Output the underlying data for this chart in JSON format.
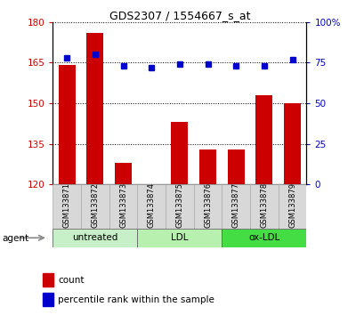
{
  "title": "GDS2307 / 1554667_s_at",
  "samples": [
    "GSM133871",
    "GSM133872",
    "GSM133873",
    "GSM133874",
    "GSM133875",
    "GSM133876",
    "GSM133877",
    "GSM133878",
    "GSM133879"
  ],
  "counts": [
    164,
    176,
    128,
    120,
    143,
    133,
    133,
    153,
    150
  ],
  "percentiles": [
    78,
    80,
    73,
    72,
    74,
    74,
    73,
    73,
    77
  ],
  "ylim_left": [
    120,
    180
  ],
  "ylim_right": [
    0,
    100
  ],
  "yticks_left": [
    120,
    135,
    150,
    165,
    180
  ],
  "yticks_right": [
    0,
    25,
    50,
    75,
    100
  ],
  "yticklabels_right": [
    "0",
    "25",
    "50",
    "75",
    "100%"
  ],
  "bar_color": "#cc0000",
  "dot_color": "#0000cc",
  "grid_color": "#000000",
  "groups": [
    {
      "label": "untreated",
      "start": 0,
      "end": 3,
      "color": "#c8f0c8"
    },
    {
      "label": "LDL",
      "start": 3,
      "end": 6,
      "color": "#b8f0b0"
    },
    {
      "label": "ox-LDL",
      "start": 6,
      "end": 9,
      "color": "#44dd44"
    }
  ],
  "legend_items": [
    {
      "label": "count",
      "color": "#cc0000"
    },
    {
      "label": "percentile rank within the sample",
      "color": "#0000cc"
    }
  ],
  "agent_label": "agent",
  "tick_label_color_left": "#cc0000",
  "tick_label_color_right": "#0000cc"
}
